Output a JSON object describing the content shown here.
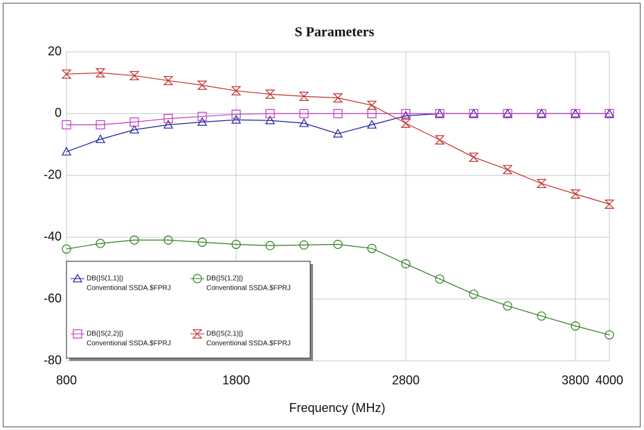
{
  "chart_data": {
    "type": "line",
    "title": "S Parameters",
    "x_label": "Frequency (MHz)",
    "x": [
      800,
      1000,
      1200,
      1400,
      1600,
      1800,
      2000,
      2200,
      2400,
      2600,
      2800,
      3000,
      3200,
      3400,
      3600,
      3800,
      4000
    ],
    "xlim": [
      800,
      4000
    ],
    "xticks": [
      800,
      1800,
      2800,
      3800,
      4000
    ],
    "ylim": [
      -80,
      20
    ],
    "yticks": [
      20,
      0,
      -20,
      -40,
      -60,
      -80
    ],
    "grid": true,
    "legend": "bottom-left",
    "series": [
      {
        "name": "DB(|S(1,1)|)",
        "dataset": "Conventional SSDA.$FPRJ",
        "color": "#1f1f9e",
        "marker": "triangle",
        "values": [
          -12.3,
          -8.3,
          -5.2,
          -3.6,
          -2.7,
          -2,
          -2.2,
          -3.1,
          -6.5,
          -3.6,
          -0.7,
          0,
          0,
          0,
          0,
          0,
          0
        ]
      },
      {
        "name": "DB(|S(1,2)|)",
        "dataset": "Conventional SSDA.$FPRJ",
        "color": "#2e7d1e",
        "marker": "circle",
        "values": [
          -43.8,
          -42,
          -40.9,
          -40.9,
          -41.6,
          -42.3,
          -42.7,
          -42.5,
          -42.3,
          -43.6,
          -48.6,
          -53.5,
          -58.4,
          -62.2,
          -65.5,
          -68.7,
          -71.6
        ]
      },
      {
        "name": "DB(|S(2,2)|)",
        "dataset": "Conventional SSDA.$FPRJ",
        "color": "#c03ac0",
        "marker": "square",
        "values": [
          -3.6,
          -3.6,
          -2.7,
          -1.6,
          -0.9,
          -0.2,
          0,
          0,
          0,
          0,
          0,
          0,
          0,
          0,
          0,
          0,
          0
        ]
      },
      {
        "name": "DB(|S(2,1)|)",
        "dataset": "Conventional SSDA.$FPRJ",
        "color": "#c0302a",
        "marker": "hourglass",
        "values": [
          12.8,
          13.2,
          12.3,
          10.7,
          9.2,
          7.4,
          6.3,
          5.6,
          5.1,
          2.7,
          -3.1,
          -8.5,
          -14.1,
          -18.1,
          -22.6,
          -26,
          -29.3
        ]
      }
    ]
  }
}
